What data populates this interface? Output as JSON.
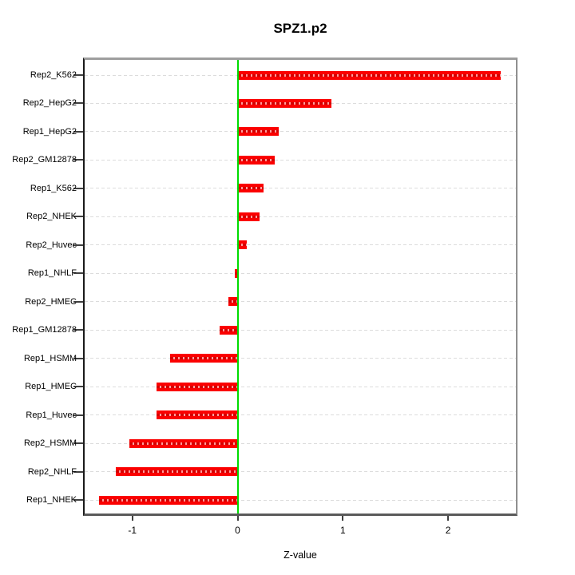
{
  "chart_data": {
    "type": "bar",
    "orientation": "horizontal",
    "title": "SPZ1.p2",
    "xlabel": "Z-value",
    "ylabel": "",
    "categories": [
      "Rep2_K562",
      "Rep2_HepG2",
      "Rep1_HepG2",
      "Rep2_GM12878",
      "Rep1_K562",
      "Rep2_NHEK",
      "Rep2_Huvec",
      "Rep1_NHLF",
      "Rep2_HMEC",
      "Rep1_GM12878",
      "Rep1_HSMM",
      "Rep1_HMEC",
      "Rep1_Huvec",
      "Rep2_HSMM",
      "Rep2_NHLF",
      "Rep1_NHEK"
    ],
    "values": [
      2.5,
      0.89,
      0.39,
      0.35,
      0.25,
      0.21,
      0.09,
      -0.03,
      -0.09,
      -0.17,
      -0.64,
      -0.77,
      -0.77,
      -1.03,
      -1.16,
      -1.32
    ],
    "x_ticks": [
      -1,
      0,
      1,
      2
    ],
    "x_tick_labels": [
      "-1",
      "0",
      "1",
      "2"
    ],
    "xlim": [
      -1.47,
      2.66
    ],
    "grid": "horizontal dashed per category",
    "legend": "none",
    "colors": {
      "bar_fill": "#fb0000",
      "bar_stripe_dash": "#d40000",
      "bar_stripe_gap": "#ff9e9e",
      "zero_line": "#00db00",
      "gridline": "#dcdcdc",
      "axis_box_top": "#9e9e9e",
      "axis_box_left": "#1a1a1a",
      "axis_box_right": "#8f8f8f",
      "axis_box_bottom": "#5a5a5a",
      "text": "#000000"
    }
  }
}
